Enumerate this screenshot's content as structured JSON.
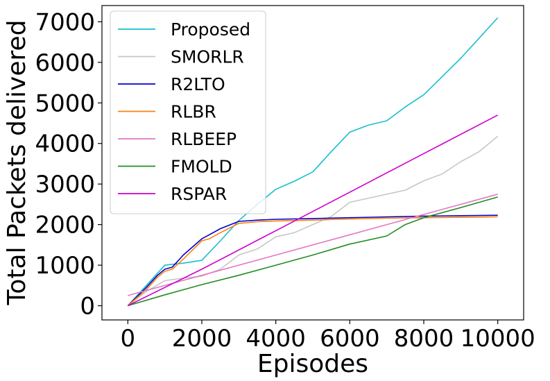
{
  "chart_data": {
    "type": "line",
    "title": "",
    "xlabel": "Episodes",
    "ylabel": "Total Packets delivered",
    "xlim": [
      -700,
      10700
    ],
    "ylim": [
      -350,
      7400
    ],
    "xticks": [
      0,
      2000,
      4000,
      6000,
      8000,
      10000
    ],
    "yticks": [
      0,
      1000,
      2000,
      3000,
      4000,
      5000,
      6000,
      7000
    ],
    "grid": false,
    "legend_position": "top-left",
    "series": [
      {
        "name": "Proposed",
        "color": "#17becf",
        "x": [
          0,
          500,
          1000,
          1500,
          2000,
          2500,
          3000,
          3500,
          4000,
          4500,
          5000,
          5500,
          6000,
          6500,
          7000,
          7500,
          8000,
          8500,
          9000,
          9500,
          10000
        ],
        "y": [
          0,
          500,
          1000,
          1050,
          1120,
          1600,
          2100,
          2500,
          2870,
          3070,
          3300,
          3800,
          4280,
          4450,
          4560,
          4900,
          5200,
          5650,
          6100,
          6600,
          7100
        ]
      },
      {
        "name": "SMORLR",
        "color": "#c7c7c7",
        "x": [
          0,
          500,
          1000,
          1500,
          2000,
          2500,
          3000,
          3500,
          4000,
          4500,
          5000,
          5500,
          6000,
          6500,
          7000,
          7500,
          8000,
          8500,
          9000,
          9500,
          10000
        ],
        "y": [
          0,
          350,
          620,
          680,
          730,
          900,
          1250,
          1400,
          1700,
          1800,
          2000,
          2200,
          2550,
          2650,
          2750,
          2850,
          3080,
          3250,
          3550,
          3800,
          4180
        ]
      },
      {
        "name": "R2LTO",
        "color": "#0000cc",
        "x": [
          0,
          500,
          800,
          1000,
          1200,
          1500,
          2000,
          2200,
          2500,
          3000,
          3500,
          4000,
          5000,
          6000,
          7000,
          8000,
          9000,
          10000
        ],
        "y": [
          0,
          450,
          750,
          900,
          950,
          1250,
          1650,
          1750,
          1900,
          2080,
          2110,
          2130,
          2150,
          2170,
          2190,
          2210,
          2220,
          2230
        ]
      },
      {
        "name": "RLBR",
        "color": "#ff7f0e",
        "x": [
          0,
          500,
          800,
          1000,
          1200,
          1500,
          2000,
          2200,
          2500,
          3000,
          3500,
          4000,
          5000,
          6000,
          7000,
          8000,
          9000,
          10000
        ],
        "y": [
          0,
          400,
          700,
          850,
          900,
          1150,
          1600,
          1650,
          1800,
          2030,
          2070,
          2090,
          2110,
          2140,
          2160,
          2170,
          2180,
          2190
        ]
      },
      {
        "name": "RLBEEP",
        "color": "#e377c2",
        "x": [
          0,
          2000,
          4000,
          6000,
          8000,
          10000
        ],
        "y": [
          250,
          750,
          1250,
          1750,
          2250,
          2750
        ]
      },
      {
        "name": "FMOLD",
        "color": "#1f8c1f",
        "x": [
          0,
          1000,
          2000,
          3000,
          4000,
          5000,
          6000,
          7000,
          7500,
          8000,
          9000,
          10000
        ],
        "y": [
          0,
          270,
          520,
          750,
          1000,
          1250,
          1520,
          1720,
          2000,
          2170,
          2420,
          2680
        ]
      },
      {
        "name": "RSPAR",
        "color": "#cc00cc",
        "x": [
          0,
          2000,
          4000,
          6000,
          8000,
          10000
        ],
        "y": [
          0,
          900,
          1850,
          2800,
          3750,
          4700
        ]
      }
    ]
  }
}
